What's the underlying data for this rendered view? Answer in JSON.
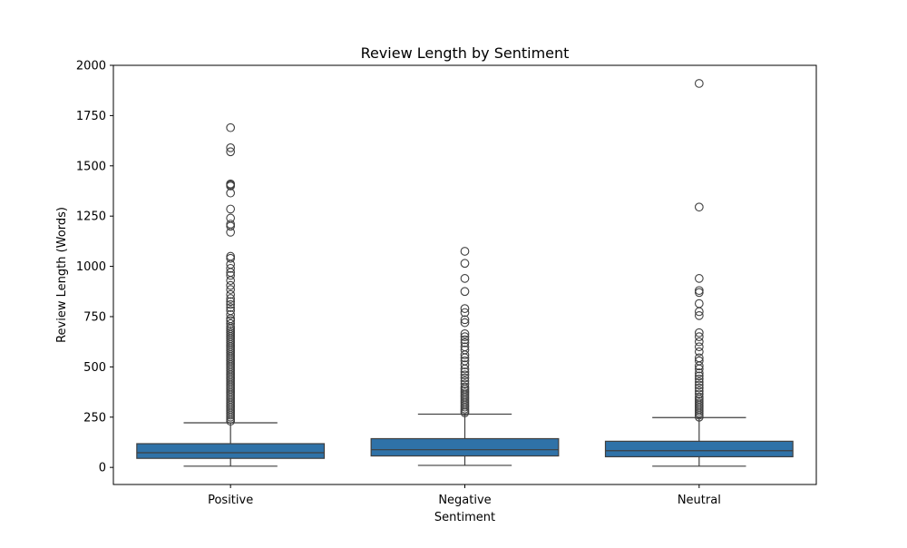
{
  "chart_data": {
    "type": "box",
    "title": "Review Length by Sentiment",
    "xlabel": "Sentiment",
    "ylabel": "Review Length (Words)",
    "ylim": [
      -85,
      2000
    ],
    "yticks": [
      0,
      250,
      500,
      750,
      1000,
      1250,
      1500,
      1750,
      2000
    ],
    "grid": false,
    "box_color": "#2f72a8",
    "categories": [
      "Positive",
      "Negative",
      "Neutral"
    ],
    "boxes": [
      {
        "category": "Positive",
        "whisker_low": 6,
        "q1": 45,
        "median": 73,
        "q3": 118,
        "whisker_high": 222,
        "outliers": [
          1690,
          1590,
          1570,
          1410,
          1405,
          1400,
          1365,
          1285,
          1240,
          1210,
          1200,
          1170,
          1050,
          1040,
          1010,
          990,
          970,
          955,
          930,
          905,
          885,
          860,
          840,
          825,
          810,
          795,
          780,
          760,
          740,
          730,
          715,
          700,
          690,
          680,
          670,
          660,
          650,
          640,
          630,
          620,
          610,
          600,
          590,
          580,
          570,
          560,
          550,
          540,
          530,
          520,
          510,
          500,
          490,
          480,
          470,
          460,
          450,
          440,
          430,
          420,
          410,
          400,
          390,
          380,
          370,
          360,
          350,
          340,
          330,
          320,
          310,
          300,
          290,
          280,
          270,
          260,
          250,
          240,
          230
        ]
      },
      {
        "category": "Negative",
        "whisker_low": 10,
        "q1": 57,
        "median": 88,
        "q3": 143,
        "whisker_high": 265,
        "outliers": [
          1075,
          1015,
          940,
          875,
          790,
          770,
          735,
          720,
          665,
          650,
          635,
          620,
          600,
          585,
          560,
          545,
          530,
          510,
          490,
          475,
          460,
          445,
          430,
          415,
          400,
          390,
          380,
          370,
          360,
          350,
          340,
          330,
          320,
          310,
          300,
          290,
          280,
          272
        ]
      },
      {
        "category": "Neutral",
        "whisker_low": 6,
        "q1": 53,
        "median": 83,
        "q3": 130,
        "whisker_high": 248,
        "outliers": [
          1910,
          1295,
          940,
          880,
          870,
          815,
          775,
          755,
          670,
          650,
          625,
          600,
          575,
          545,
          530,
          505,
          490,
          470,
          455,
          440,
          425,
          410,
          395,
          380,
          365,
          350,
          340,
          330,
          320,
          310,
          300,
          290,
          280,
          270,
          260,
          250
        ]
      }
    ]
  }
}
